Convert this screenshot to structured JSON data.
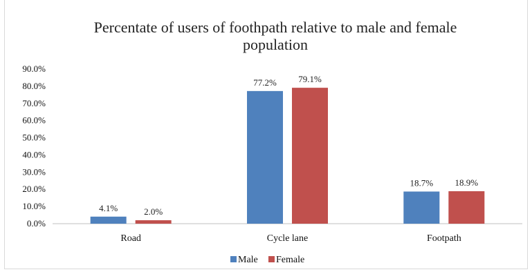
{
  "chart_data": {
    "type": "bar",
    "title_lines": [
      "Percentate of users of foothpath relative to male and female",
      "population"
    ],
    "categories": [
      "Road",
      "Cycle lane",
      "Footpath"
    ],
    "series": [
      {
        "name": "Male",
        "color": "#4f81bd",
        "values": [
          4.1,
          77.2,
          18.7
        ],
        "labels": [
          "4.1%",
          "77.2%",
          "18.7%"
        ]
      },
      {
        "name": "Female",
        "color": "#c0504d",
        "values": [
          2.0,
          79.1,
          18.9
        ],
        "labels": [
          "2.0%",
          "79.1%",
          "18.9%"
        ]
      }
    ],
    "yticks": [
      "0.0%",
      "10.0%",
      "20.0%",
      "30.0%",
      "40.0%",
      "50.0%",
      "60.0%",
      "70.0%",
      "80.0%",
      "90.0%"
    ],
    "ylim": [
      0,
      90
    ],
    "grid": false,
    "legend_position": "bottom"
  }
}
